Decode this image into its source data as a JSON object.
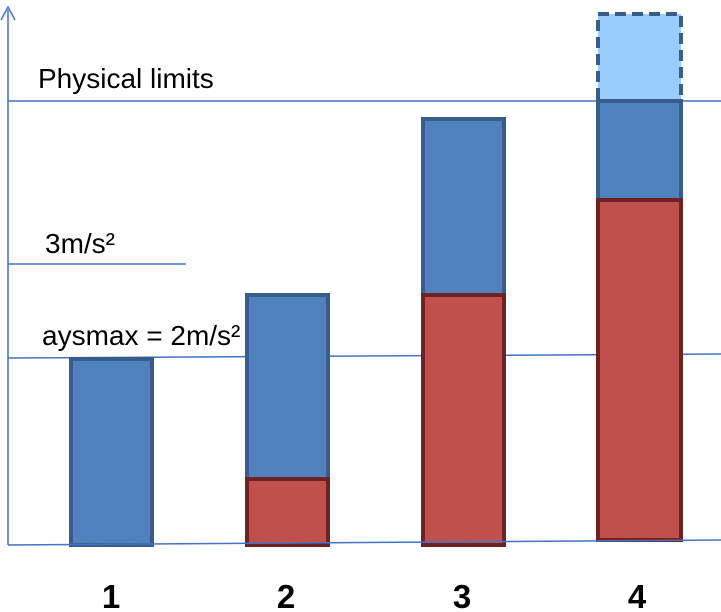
{
  "labels": {
    "physical_limits": "Physical limits",
    "mid_level": "3m/s²",
    "aysmax": "aysmax = 2m/s²"
  },
  "categories": [
    "1",
    "2",
    "3",
    "4"
  ],
  "colors": {
    "axis": "#4472c4",
    "blue_fill": "#4f81bd",
    "blue_stroke": "#385d8a",
    "red_fill": "#c0504d",
    "red_stroke": "#6e2322",
    "light_fill": "#99ccff"
  }
}
